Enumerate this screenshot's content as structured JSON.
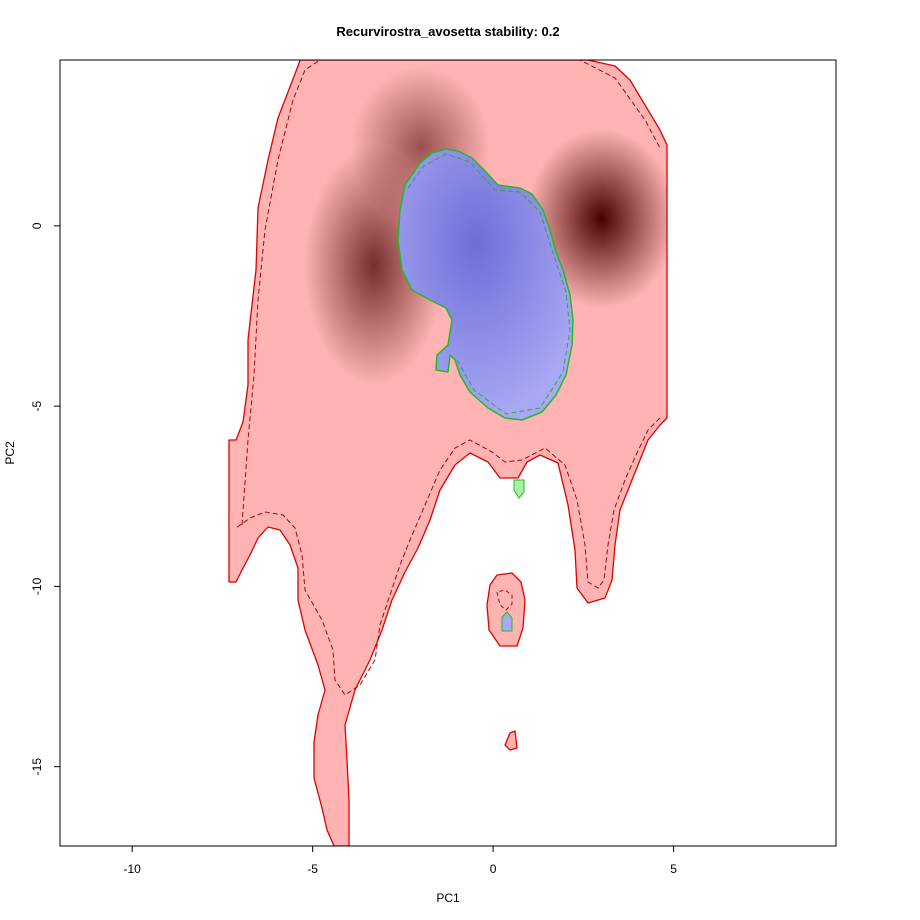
{
  "chart_data": {
    "type": "heatmap",
    "title": "Recurvirostra_avosetta stability: 0.2",
    "xlabel": "PC1",
    "ylabel": "PC2",
    "xlim": [
      -12,
      9.5
    ],
    "ylim": [
      -17.2,
      4.6
    ],
    "xticks": [
      -10,
      -5,
      0,
      5
    ],
    "yticks": [
      0,
      -5,
      -10,
      -15
    ],
    "grid": false,
    "density_hotspots": [
      {
        "x": -3.3,
        "y": -1.1,
        "intensity": 0.75
      },
      {
        "x": -2.0,
        "y": 2.2,
        "intensity": 0.55
      },
      {
        "x": 3.0,
        "y": 0.2,
        "intensity": 1.0
      }
    ],
    "colors": {
      "range_fill": "#ffb3b3",
      "density_peak": "#4a0000",
      "range_outline": "#e00000",
      "overlap_fill": "#a8a8f4",
      "overlap_dark": "#6e6ed8",
      "overlap_outline": "#22bb22",
      "green_fill": "#a8f0a8"
    }
  }
}
